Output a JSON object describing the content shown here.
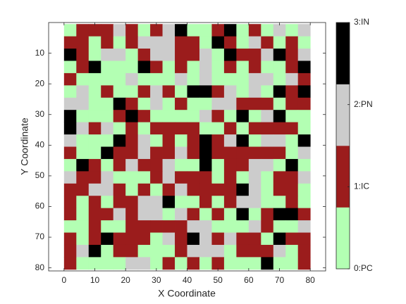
{
  "chart_data": {
    "type": "heatmap",
    "xlabel": "X Coordinate",
    "ylabel": "Y Coordinate",
    "x": [
      2,
      6,
      10,
      14,
      18,
      22,
      26,
      30,
      34,
      38,
      42,
      46,
      50,
      54,
      58,
      62,
      66,
      70,
      74,
      78
    ],
    "y": [
      2.5,
      6.5,
      10.5,
      14.5,
      18.5,
      22.5,
      26.5,
      30.5,
      34.5,
      38.5,
      42.5,
      46.5,
      50.5,
      54.5,
      58.5,
      62.5,
      66.5,
      70.5,
      74.5,
      78.5
    ],
    "xlim": [
      -5,
      85
    ],
    "ylim": [
      0,
      81
    ],
    "y_reversed": true,
    "xticks": [
      0,
      10,
      20,
      30,
      40,
      50,
      60,
      70,
      80
    ],
    "yticks": [
      10,
      20,
      30,
      40,
      50,
      60,
      70,
      80
    ],
    "colors": [
      "#b3ffb3",
      "#9b1c1c",
      "#cccccc",
      "#000000"
    ],
    "clim": [
      0,
      3
    ],
    "cticks": [
      {
        "value": 0,
        "label": "0:PC"
      },
      {
        "value": 1,
        "label": "1:IC"
      },
      {
        "value": 2,
        "label": "2:PN"
      },
      {
        "value": 3,
        "label": "3:IN"
      }
    ],
    "z": [
      [
        0,
        1,
        1,
        1,
        2,
        1,
        0,
        1,
        2,
        3,
        0,
        0,
        1,
        3,
        0,
        1,
        0,
        2,
        0,
        2
      ],
      [
        1,
        1,
        0,
        1,
        0,
        1,
        2,
        2,
        2,
        1,
        1,
        0,
        3,
        1,
        0,
        2,
        1,
        0,
        1,
        0
      ],
      [
        3,
        1,
        0,
        2,
        2,
        0,
        1,
        2,
        2,
        1,
        1,
        2,
        0,
        3,
        1,
        1,
        2,
        3,
        1,
        2
      ],
      [
        0,
        1,
        3,
        0,
        0,
        0,
        3,
        1,
        0,
        1,
        0,
        2,
        0,
        1,
        0,
        1,
        0,
        0,
        1,
        3
      ],
      [
        1,
        0,
        0,
        0,
        0,
        2,
        0,
        0,
        0,
        2,
        0,
        2,
        0,
        0,
        0,
        2,
        2,
        0,
        2,
        1
      ],
      [
        0,
        2,
        0,
        1,
        0,
        0,
        1,
        2,
        1,
        0,
        3,
        3,
        1,
        2,
        0,
        2,
        0,
        3,
        1,
        3
      ],
      [
        2,
        2,
        0,
        0,
        3,
        1,
        0,
        2,
        0,
        1,
        0,
        0,
        2,
        2,
        1,
        1,
        1,
        0,
        1,
        1
      ],
      [
        3,
        0,
        0,
        0,
        1,
        3,
        1,
        0,
        0,
        0,
        0,
        2,
        1,
        0,
        3,
        0,
        2,
        3,
        0,
        0
      ],
      [
        3,
        2,
        1,
        2,
        0,
        1,
        0,
        1,
        1,
        1,
        1,
        0,
        0,
        1,
        0,
        1,
        1,
        1,
        1,
        0
      ],
      [
        2,
        0,
        0,
        0,
        3,
        1,
        2,
        0,
        1,
        0,
        1,
        3,
        1,
        2,
        3,
        0,
        2,
        2,
        0,
        3
      ],
      [
        1,
        0,
        0,
        3,
        1,
        1,
        2,
        1,
        1,
        2,
        1,
        3,
        1,
        1,
        1,
        1,
        1,
        1,
        0,
        2
      ],
      [
        0,
        3,
        1,
        0,
        1,
        2,
        1,
        1,
        2,
        0,
        0,
        3,
        0,
        1,
        1,
        2,
        2,
        0,
        3,
        0
      ],
      [
        2,
        1,
        1,
        2,
        0,
        0,
        0,
        1,
        2,
        1,
        1,
        1,
        0,
        1,
        0,
        2,
        0,
        1,
        1,
        2
      ],
      [
        1,
        1,
        2,
        2,
        1,
        0,
        1,
        0,
        1,
        2,
        1,
        1,
        1,
        1,
        3,
        2,
        0,
        1,
        1,
        0
      ],
      [
        1,
        0,
        1,
        0,
        1,
        1,
        2,
        2,
        3,
        0,
        0,
        1,
        0,
        1,
        2,
        2,
        0,
        0,
        1,
        0
      ],
      [
        1,
        0,
        1,
        1,
        2,
        1,
        2,
        2,
        0,
        2,
        1,
        0,
        1,
        0,
        3,
        0,
        1,
        3,
        3,
        1
      ],
      [
        0,
        0,
        1,
        0,
        0,
        1,
        1,
        1,
        1,
        1,
        2,
        2,
        0,
        0,
        0,
        2,
        1,
        0,
        0,
        2
      ],
      [
        1,
        0,
        1,
        3,
        1,
        1,
        1,
        0,
        2,
        1,
        3,
        2,
        1,
        2,
        1,
        1,
        0,
        3,
        1,
        1
      ],
      [
        1,
        2,
        3,
        0,
        1,
        1,
        0,
        0,
        0,
        1,
        2,
        2,
        2,
        0,
        1,
        1,
        1,
        2,
        0,
        1
      ],
      [
        1,
        0,
        0,
        0,
        0,
        2,
        2,
        0,
        1,
        0,
        1,
        0,
        1,
        0,
        0,
        0,
        3,
        0,
        0,
        1
      ]
    ]
  }
}
